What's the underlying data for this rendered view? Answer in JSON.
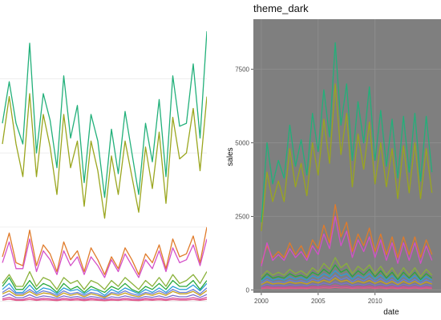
{
  "chart_data": [
    {
      "type": "line",
      "title": "",
      "theme": "minimal",
      "grid": true,
      "legend": "none",
      "series": [
        {
          "color": "#22b07a",
          "values": [
            6000,
            7400,
            6000,
            5300,
            8700,
            5000,
            7000,
            6100,
            4500,
            7600,
            5500,
            6600,
            4000,
            6300,
            5400,
            3500,
            5800,
            4300,
            6400,
            5000,
            3600,
            6000,
            4700,
            6800,
            4200,
            7600,
            5900,
            6000,
            8000,
            5500,
            9100
          ]
        },
        {
          "color": "#9aa61e",
          "values": [
            5300,
            6900,
            5300,
            4200,
            7000,
            4200,
            6300,
            5200,
            3600,
            6300,
            4500,
            5400,
            3200,
            5400,
            4400,
            2800,
            4900,
            3600,
            5400,
            4200,
            3000,
            5200,
            3800,
            5700,
            3300,
            6200,
            4800,
            5000,
            6500,
            4400,
            6900
          ]
        },
        {
          "color": "#e07b2a",
          "values": [
            1500,
            2300,
            1300,
            1200,
            2400,
            1200,
            1900,
            1600,
            1000,
            2000,
            1400,
            1700,
            1000,
            1800,
            1400,
            900,
            1500,
            1100,
            1800,
            1400,
            900,
            1600,
            1300,
            1900,
            1100,
            2100,
            1500,
            1600,
            2200,
            1300,
            2500
          ]
        },
        {
          "color": "#d450c8",
          "values": [
            1300,
            2000,
            1100,
            1100,
            2100,
            1000,
            1700,
            1400,
            900,
            1700,
            1200,
            1500,
            900,
            1500,
            1200,
            800,
            1400,
            1000,
            1600,
            1200,
            800,
            1400,
            1100,
            1700,
            1000,
            1800,
            1300,
            1400,
            1900,
            1200,
            2100
          ]
        },
        {
          "color": "#8ab13a",
          "values": [
            600,
            900,
            500,
            500,
            1000,
            500,
            800,
            700,
            400,
            800,
            600,
            700,
            400,
            700,
            600,
            400,
            700,
            500,
            800,
            600,
            400,
            700,
            500,
            800,
            500,
            900,
            600,
            700,
            900,
            600,
            1000
          ]
        },
        {
          "color": "#28a83c",
          "values": [
            500,
            800,
            400,
            400,
            700,
            400,
            600,
            500,
            300,
            600,
            400,
            500,
            300,
            500,
            400,
            300,
            500,
            400,
            600,
            400,
            300,
            500,
            400,
            600,
            400,
            700,
            500,
            500,
            700,
            400,
            700
          ]
        },
        {
          "color": "#2b9fd8",
          "values": [
            400,
            600,
            300,
            300,
            550,
            300,
            450,
            400,
            250,
            450,
            350,
            400,
            250,
            400,
            350,
            200,
            400,
            300,
            450,
            350,
            250,
            400,
            300,
            450,
            300,
            500,
            400,
            400,
            550,
            350,
            600
          ]
        },
        {
          "color": "#6a7fd8",
          "values": [
            300,
            450,
            250,
            250,
            400,
            250,
            350,
            300,
            200,
            350,
            250,
            300,
            200,
            300,
            250,
            150,
            300,
            250,
            350,
            250,
            200,
            300,
            250,
            350,
            250,
            400,
            300,
            300,
            400,
            250,
            450
          ]
        },
        {
          "color": "#c8a020",
          "values": [
            250,
            350,
            200,
            200,
            330,
            200,
            280,
            250,
            150,
            280,
            200,
            250,
            150,
            250,
            200,
            120,
            250,
            200,
            280,
            200,
            150,
            250,
            200,
            280,
            200,
            330,
            250,
            250,
            330,
            200,
            360
          ]
        },
        {
          "color": "#7b6fd0",
          "values": [
            150,
            250,
            120,
            120,
            220,
            120,
            180,
            150,
            100,
            180,
            130,
            160,
            100,
            160,
            130,
            80,
            150,
            120,
            180,
            130,
            100,
            160,
            130,
            180,
            120,
            200,
            150,
            150,
            220,
            130,
            230
          ]
        },
        {
          "color": "#d44a9c",
          "values": [
            80,
            130,
            60,
            60,
            120,
            60,
            100,
            80,
            50,
            100,
            70,
            90,
            50,
            90,
            70,
            40,
            80,
            60,
            100,
            70,
            50,
            90,
            70,
            100,
            60,
            110,
            80,
            80,
            120,
            70,
            130
          ]
        },
        {
          "color": "#e25b8a",
          "values": [
            40,
            70,
            30,
            30,
            60,
            30,
            50,
            40,
            25,
            50,
            35,
            45,
            25,
            45,
            35,
            20,
            40,
            30,
            50,
            35,
            25,
            45,
            35,
            50,
            30,
            55,
            40,
            40,
            60,
            35,
            65
          ]
        }
      ]
    },
    {
      "type": "line",
      "title": "theme_dark",
      "theme": "dark",
      "xlabel": "date",
      "ylabel": "sales",
      "grid": true,
      "legend": "none",
      "xlim": [
        1999.3,
        2015.8
      ],
      "ylim": [
        -100,
        9200
      ],
      "x_ticks": [
        2000,
        2005,
        2010
      ],
      "x_tick_labels": [
        "2000",
        "2005",
        "2010"
      ],
      "y_ticks": [
        0,
        2500,
        5000,
        7500
      ],
      "y_tick_labels": [
        "0",
        "2500",
        "5000",
        "7500"
      ],
      "x": [
        2000.0,
        2000.5,
        2001.0,
        2001.5,
        2002.0,
        2002.5,
        2003.0,
        2003.5,
        2004.0,
        2004.5,
        2005.0,
        2005.5,
        2006.0,
        2006.5,
        2007.0,
        2007.5,
        2008.0,
        2008.5,
        2009.0,
        2009.5,
        2010.0,
        2010.5,
        2011.0,
        2011.5,
        2012.0,
        2012.5,
        2013.0,
        2013.5,
        2014.0,
        2014.5,
        2015.0
      ],
      "series": [
        {
          "color": "#22b07a",
          "values": [
            2300,
            5000,
            3600,
            4400,
            3800,
            5600,
            4200,
            5100,
            3900,
            6000,
            4700,
            6800,
            5200,
            8400,
            5600,
            7000,
            4400,
            6400,
            5000,
            6900,
            4400,
            6100,
            4200,
            5800,
            3800,
            5900,
            4000,
            6000,
            3700,
            5900,
            4000
          ]
        },
        {
          "color": "#9aa61e",
          "values": [
            2000,
            4000,
            3000,
            3700,
            3000,
            4800,
            3500,
            4300,
            3200,
            5000,
            3900,
            5800,
            4300,
            7000,
            4600,
            6000,
            3500,
            5300,
            4100,
            5700,
            3600,
            5000,
            3500,
            4800,
            3100,
            4900,
            3300,
            5000,
            3100,
            4800,
            3300
          ]
        },
        {
          "color": "#e07b2a",
          "values": [
            900,
            1500,
            1100,
            1300,
            1100,
            1600,
            1200,
            1500,
            1100,
            1700,
            1400,
            2200,
            1600,
            2900,
            1800,
            2300,
            1300,
            1900,
            1500,
            2100,
            1300,
            1900,
            1200,
            1800,
            1100,
            1800,
            1200,
            1800,
            1100,
            1700,
            1200
          ]
        },
        {
          "color": "#d450c8",
          "values": [
            800,
            1600,
            1000,
            1200,
            1000,
            1400,
            1100,
            1300,
            1000,
            1500,
            1200,
            1900,
            1400,
            2500,
            1500,
            2000,
            1100,
            1700,
            1300,
            1800,
            1100,
            1700,
            1000,
            1600,
            900,
            1600,
            1000,
            1600,
            900,
            1500,
            1000
          ]
        },
        {
          "color": "#8ab13a",
          "values": [
            450,
            650,
            500,
            600,
            500,
            700,
            550,
            650,
            500,
            750,
            600,
            900,
            700,
            1100,
            750,
            900,
            550,
            800,
            650,
            850,
            550,
            800,
            500,
            750,
            450,
            750,
            500,
            750,
            450,
            700,
            500
          ]
        },
        {
          "color": "#28a83c",
          "values": [
            350,
            550,
            400,
            450,
            400,
            550,
            450,
            500,
            400,
            600,
            500,
            700,
            550,
            850,
            600,
            700,
            450,
            650,
            500,
            700,
            450,
            650,
            400,
            600,
            350,
            600,
            400,
            600,
            350,
            550,
            400
          ]
        },
        {
          "color": "#2b9fd8",
          "values": [
            300,
            450,
            330,
            380,
            330,
            450,
            360,
            420,
            330,
            480,
            400,
            550,
            450,
            650,
            480,
            550,
            360,
            500,
            400,
            550,
            360,
            500,
            330,
            480,
            300,
            480,
            330,
            480,
            300,
            450,
            330
          ]
        },
        {
          "color": "#6a7fd8",
          "values": [
            220,
            350,
            250,
            280,
            250,
            330,
            270,
            310,
            250,
            360,
            300,
            420,
            330,
            500,
            350,
            420,
            270,
            380,
            300,
            410,
            270,
            380,
            250,
            360,
            220,
            360,
            250,
            360,
            220,
            340,
            250
          ]
        },
        {
          "color": "#c8a020",
          "values": [
            180,
            280,
            200,
            230,
            200,
            270,
            220,
            250,
            200,
            290,
            240,
            330,
            260,
            400,
            280,
            330,
            220,
            300,
            240,
            320,
            220,
            300,
            200,
            290,
            180,
            290,
            200,
            290,
            180,
            270,
            200
          ]
        },
        {
          "color": "#7b6fd0",
          "values": [
            120,
            190,
            140,
            160,
            140,
            180,
            150,
            170,
            140,
            200,
            160,
            230,
            180,
            270,
            190,
            230,
            150,
            200,
            160,
            220,
            150,
            200,
            140,
            190,
            120,
            190,
            140,
            190,
            120,
            180,
            140
          ]
        },
        {
          "color": "#d44a9c",
          "values": [
            70,
            110,
            80,
            90,
            80,
            100,
            85,
            95,
            80,
            115,
            95,
            130,
            105,
            160,
            110,
            130,
            85,
            115,
            95,
            125,
            85,
            115,
            80,
            110,
            70,
            110,
            80,
            110,
            70,
            105,
            80
          ]
        },
        {
          "color": "#e25b8a",
          "values": [
            40,
            60,
            45,
            50,
            45,
            55,
            48,
            52,
            45,
            62,
            52,
            70,
            58,
            85,
            60,
            70,
            48,
            62,
            52,
            68,
            48,
            62,
            45,
            60,
            40,
            60,
            45,
            60,
            40,
            58,
            45
          ]
        }
      ]
    }
  ]
}
